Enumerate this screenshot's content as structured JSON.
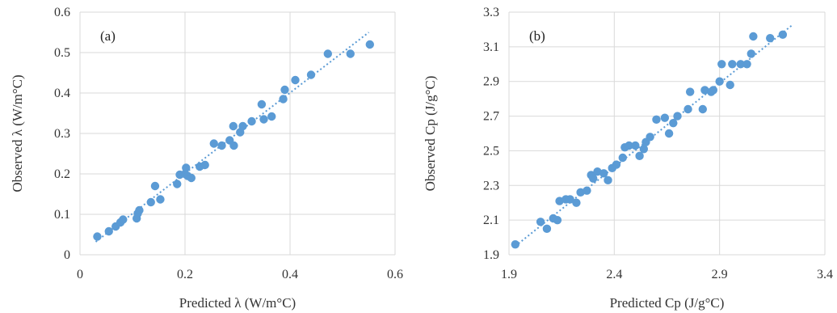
{
  "colors": {
    "marker": "#5b9bd5",
    "trendline": "#5b9bd5",
    "grid": "#d9d9d9",
    "text": "#333333"
  },
  "chart_data": [
    {
      "type": "scatter",
      "panel_label": "(a)",
      "xlabel": "Predicted λ (W/m°C)",
      "ylabel": "Observed λ (W/m°C)",
      "xlim": [
        0,
        0.6
      ],
      "ylim": [
        0,
        0.6
      ],
      "xticks": [
        "0",
        "0.2",
        "0.4",
        "0.6"
      ],
      "xtick_values": [
        0,
        0.2,
        0.4,
        0.6
      ],
      "yticks": [
        "0",
        "0.1",
        "0.2",
        "0.3",
        "0.4",
        "0.5",
        "0.6"
      ],
      "ytick_values": [
        0,
        0.1,
        0.2,
        0.3,
        0.4,
        0.5,
        0.6
      ],
      "grid": true,
      "trendline": {
        "style": "dotted",
        "x": [
          0.03,
          0.55
        ],
        "y": [
          0.032,
          0.55
        ]
      },
      "x": [
        0.033,
        0.055,
        0.068,
        0.077,
        0.082,
        0.108,
        0.11,
        0.113,
        0.135,
        0.143,
        0.153,
        0.185,
        0.19,
        0.2,
        0.202,
        0.205,
        0.212,
        0.228,
        0.238,
        0.255,
        0.27,
        0.285,
        0.292,
        0.293,
        0.305,
        0.31,
        0.327,
        0.346,
        0.35,
        0.365,
        0.387,
        0.39,
        0.41,
        0.44,
        0.472,
        0.515,
        0.552
      ],
      "y": [
        0.045,
        0.058,
        0.07,
        0.08,
        0.087,
        0.09,
        0.102,
        0.11,
        0.13,
        0.17,
        0.137,
        0.175,
        0.198,
        0.2,
        0.215,
        0.195,
        0.19,
        0.218,
        0.222,
        0.275,
        0.27,
        0.283,
        0.318,
        0.27,
        0.303,
        0.318,
        0.33,
        0.372,
        0.335,
        0.342,
        0.385,
        0.408,
        0.432,
        0.445,
        0.497,
        0.497,
        0.52
      ]
    },
    {
      "type": "scatter",
      "panel_label": "(b)",
      "xlabel": "Predicted Cp (J/g°C)",
      "ylabel": "Observed Cp (J/g°C)",
      "xlim": [
        1.9,
        3.4
      ],
      "ylim": [
        1.9,
        3.3
      ],
      "xticks": [
        "1.9",
        "2.4",
        "2.9",
        "3.4"
      ],
      "xtick_values": [
        1.9,
        2.4,
        2.9,
        3.4
      ],
      "yticks": [
        "1.9",
        "2.1",
        "2.3",
        "2.5",
        "2.7",
        "2.9",
        "3.1",
        "3.3"
      ],
      "ytick_values": [
        1.9,
        2.1,
        2.3,
        2.5,
        2.7,
        2.9,
        3.1,
        3.3
      ],
      "grid": true,
      "trendline": {
        "style": "dotted",
        "x": [
          1.93,
          3.25
        ],
        "y": [
          1.95,
          3.23
        ]
      },
      "x": [
        1.93,
        2.05,
        2.08,
        2.11,
        2.13,
        2.14,
        2.17,
        2.19,
        2.22,
        2.24,
        2.27,
        2.29,
        2.3,
        2.32,
        2.35,
        2.37,
        2.39,
        2.41,
        2.44,
        2.45,
        2.47,
        2.5,
        2.52,
        2.54,
        2.55,
        2.57,
        2.6,
        2.64,
        2.66,
        2.68,
        2.7,
        2.75,
        2.76,
        2.82,
        2.83,
        2.86,
        2.87,
        2.9,
        2.91,
        2.95,
        2.96,
        3.0,
        3.03,
        3.05,
        3.06,
        3.14,
        3.2
      ],
      "y": [
        1.96,
        2.09,
        2.05,
        2.11,
        2.1,
        2.21,
        2.22,
        2.22,
        2.2,
        2.26,
        2.27,
        2.36,
        2.34,
        2.38,
        2.37,
        2.33,
        2.4,
        2.42,
        2.46,
        2.52,
        2.53,
        2.53,
        2.47,
        2.51,
        2.55,
        2.58,
        2.68,
        2.69,
        2.6,
        2.66,
        2.7,
        2.74,
        2.84,
        2.74,
        2.85,
        2.84,
        2.85,
        2.9,
        3.0,
        2.88,
        3.0,
        3.0,
        3.0,
        3.06,
        3.16,
        3.15,
        3.17
      ]
    }
  ]
}
